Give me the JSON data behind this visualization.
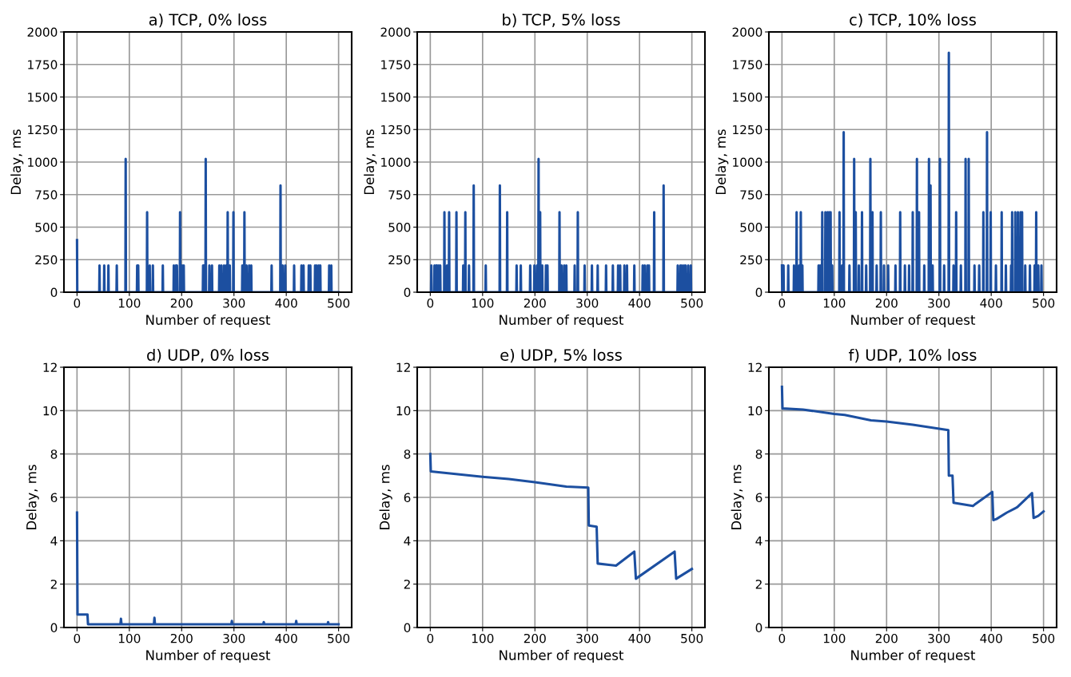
{
  "chart_data": [
    {
      "type": "line",
      "title": "a) TCP, 0% loss",
      "xlabel": "Number of request",
      "ylabel": "Delay, ms",
      "xlim": [
        -25,
        525
      ],
      "xticks": [
        0,
        100,
        200,
        300,
        400,
        500
      ],
      "ylim": [
        0,
        2000
      ],
      "yticks": [
        0,
        250,
        500,
        750,
        1000,
        1250,
        1500,
        1750,
        2000
      ],
      "grid": true,
      "series": [
        {
          "color": "#1c4fa0",
          "x": [
            0,
            0.5,
            42.5,
            43,
            43.5,
            51.5,
            52,
            52.5,
            59.5,
            60,
            60.5,
            75.5,
            76,
            76.5,
            92.5,
            93,
            93.5,
            114.5,
            115,
            115.5,
            116.5,
            117,
            117.5,
            133.5,
            134,
            134.5,
            138.5,
            139,
            139.5,
            144.5,
            145,
            145.5,
            163.5,
            164,
            164.5,
            184.5,
            185,
            185.5,
            188.5,
            189,
            189.5,
            190.5,
            191,
            191.5,
            196.5,
            197,
            197.5,
            200.5,
            201,
            201.5,
            203.5,
            204,
            204.5,
            240.5,
            241,
            241.5,
            242.5,
            243,
            243.5,
            245.5,
            246,
            246.5,
            252.5,
            253,
            253.5,
            257.5,
            258,
            258.5,
            271.5,
            272,
            272.5,
            275.5,
            276,
            276.5,
            280.5,
            281,
            281.5,
            284.5,
            285,
            285.5,
            287.5,
            288,
            288.5,
            291.5,
            292,
            292.5,
            298.5,
            299,
            299.5,
            315.5,
            316,
            316.5,
            319.5,
            320,
            320.5,
            323.5,
            324,
            324.5,
            328.5,
            329,
            329.5,
            332.5,
            333,
            333.5,
            371.5,
            372,
            372.5,
            388.5,
            389,
            389.5,
            392.5,
            393,
            393.5,
            397.5,
            398,
            398.5,
            414.5,
            415,
            415.5,
            428.5,
            429,
            429.5,
            432.5,
            433,
            433.5,
            442.5,
            443,
            443.5,
            445.5,
            446,
            446.5,
            454.5,
            455,
            455.5,
            457.5,
            458,
            458.5,
            461.5,
            462,
            462.5,
            464.5,
            465,
            465.5,
            481.5,
            482,
            482.5,
            485.5,
            486,
            486.5,
            500
          ],
          "values": [
            400,
            0,
            0,
            205,
            0,
            0,
            205,
            0,
            0,
            205,
            0,
            0,
            205,
            0,
            0,
            1025,
            0,
            0,
            205,
            0,
            0,
            205,
            0,
            0,
            615,
            0,
            0,
            205,
            0,
            0,
            205,
            0,
            0,
            205,
            0,
            0,
            205,
            0,
            0,
            205,
            0,
            0,
            205,
            0,
            0,
            615,
            0,
            0,
            205,
            0,
            0,
            205,
            0,
            0,
            205,
            0,
            0,
            205,
            0,
            0,
            1025,
            0,
            0,
            205,
            0,
            0,
            205,
            0,
            0,
            205,
            0,
            0,
            205,
            0,
            0,
            205,
            0,
            0,
            205,
            0,
            0,
            615,
            0,
            0,
            205,
            0,
            0,
            615,
            0,
            0,
            205,
            0,
            0,
            615,
            0,
            0,
            205,
            0,
            0,
            205,
            0,
            0,
            205,
            0,
            0,
            205,
            0,
            0,
            820,
            0,
            0,
            205,
            0,
            0,
            205,
            0,
            0,
            205,
            0,
            0,
            205,
            0,
            0,
            205,
            0,
            0,
            205,
            0,
            0,
            205,
            0,
            0,
            205,
            0,
            0,
            205,
            0,
            0,
            205,
            0,
            0,
            205,
            0,
            0,
            205,
            0,
            0,
            205,
            0,
            0
          ]
        }
      ]
    },
    {
      "type": "line",
      "title": "b) TCP, 5% loss",
      "xlabel": "Number of request",
      "ylabel": "Delay, ms",
      "xlim": [
        -25,
        525
      ],
      "xticks": [
        0,
        100,
        200,
        300,
        400,
        500
      ],
      "ylim": [
        0,
        2000
      ],
      "yticks": [
        0,
        250,
        500,
        750,
        1000,
        1250,
        1500,
        1750,
        2000
      ],
      "grid": true,
      "series": [
        {
          "color": "#1c4fa0",
          "x": [
            1.5,
            2,
            2.5,
            7.5,
            8,
            8.5,
            10.5,
            11,
            11.5,
            12.5,
            13,
            13.5,
            15.5,
            16,
            16.5,
            18.5,
            19,
            19.5,
            26.5,
            27,
            27.5,
            31.5,
            32,
            32.5,
            35.5,
            36,
            36.5,
            49.5,
            50,
            50.5,
            62.5,
            63,
            63.5,
            66.5,
            67,
            67.5,
            73.5,
            74,
            74.5,
            82.5,
            83,
            83.5,
            105.5,
            106,
            106.5,
            132.5,
            133,
            133.5,
            146.5,
            147,
            147.5,
            164.5,
            165,
            165.5,
            172.5,
            173,
            173.5,
            190.5,
            191,
            191.5,
            198.5,
            199,
            199.5,
            203.5,
            204,
            204.5,
            206.5,
            207,
            207.5,
            209.5,
            210,
            210.5,
            213.5,
            214,
            214.5,
            220.5,
            221,
            221.5,
            223.5,
            224,
            224.5,
            246.5,
            247,
            247.5,
            250.5,
            251,
            251.5,
            255.5,
            256,
            256.5,
            259.5,
            260,
            260.5,
            275.5,
            276,
            276.5,
            281.5,
            282,
            282.5,
            294.5,
            295,
            295.5,
            308.5,
            309,
            309.5,
            319.5,
            320,
            320.5,
            335.5,
            336,
            336.5,
            348.5,
            349,
            349.5,
            358.5,
            359,
            359.5,
            362.5,
            363,
            363.5,
            370.5,
            371,
            371.5,
            375.5,
            376,
            376.5,
            389.5,
            390,
            390.5,
            405.5,
            406,
            406.5,
            409.5,
            410,
            410.5,
            414.5,
            415,
            415.5,
            417.5,
            418,
            418.5,
            427.5,
            428,
            428.5,
            445.5,
            446,
            446.5,
            472.5,
            473,
            473.5,
            477.5,
            478,
            478.5,
            480.5,
            481,
            481.5,
            484.5,
            485,
            485.5,
            487.5,
            488,
            488.5,
            492.5,
            493,
            493.5,
            497.5,
            498,
            498.5
          ],
          "values": [
            0,
            205,
            0,
            0,
            205,
            0,
            0,
            205,
            0,
            0,
            205,
            0,
            0,
            205,
            0,
            0,
            205,
            0,
            0,
            615,
            0,
            0,
            205,
            0,
            0,
            615,
            0,
            0,
            615,
            0,
            0,
            205,
            0,
            0,
            615,
            0,
            0,
            205,
            0,
            0,
            820,
            0,
            0,
            205,
            0,
            0,
            820,
            0,
            0,
            615,
            0,
            0,
            205,
            0,
            0,
            205,
            0,
            0,
            205,
            0,
            0,
            205,
            0,
            0,
            205,
            0,
            0,
            1025,
            0,
            0,
            615,
            0,
            0,
            205,
            0,
            0,
            205,
            0,
            0,
            205,
            0,
            0,
            615,
            0,
            0,
            205,
            0,
            0,
            205,
            0,
            0,
            205,
            0,
            0,
            205,
            0,
            0,
            615,
            0,
            0,
            205,
            0,
            0,
            205,
            0,
            0,
            205,
            0,
            0,
            205,
            0,
            0,
            205,
            0,
            0,
            205,
            0,
            0,
            205,
            0,
            0,
            205,
            0,
            0,
            205,
            0,
            0,
            205,
            0,
            0,
            205,
            0,
            0,
            205,
            0,
            0,
            205,
            0,
            0,
            205,
            0,
            0,
            615,
            0,
            0,
            820,
            0,
            0,
            205,
            0,
            0,
            205,
            0,
            0,
            205,
            0,
            0,
            205,
            0,
            0,
            205,
            0,
            0,
            205,
            0,
            0,
            205,
            0
          ]
        }
      ]
    },
    {
      "type": "line",
      "title": "c) TCP, 10% loss",
      "xlabel": "Number of request",
      "ylabel": "Delay, ms",
      "xlim": [
        -25,
        525
      ],
      "xticks": [
        0,
        100,
        200,
        300,
        400,
        500
      ],
      "ylim": [
        0,
        2000
      ],
      "yticks": [
        0,
        250,
        500,
        750,
        1000,
        1250,
        1500,
        1750,
        2000
      ],
      "grid": true,
      "series": [
        {
          "color": "#1c4fa0",
          "x": [
            0,
            0.5,
            2.5,
            3,
            3.5,
            11.5,
            12,
            12.5,
            22.5,
            23,
            23.5,
            27.5,
            28,
            28.5,
            32.5,
            33,
            33.5,
            35.5,
            36,
            36.5,
            38.5,
            39,
            39.5,
            69.5,
            70,
            70.5,
            72.5,
            73,
            73.5,
            76.5,
            77,
            77.5,
            82.5,
            83,
            83.5,
            86.5,
            87,
            87.5,
            89.5,
            90,
            90.5,
            92.5,
            93,
            93.5,
            95.5,
            96,
            96.5,
            109.5,
            110,
            110.5,
            114.5,
            115,
            115.5,
            117.5,
            118,
            118.5,
            128.5,
            129,
            129.5,
            137.5,
            138,
            138.5,
            140.5,
            141,
            141.5,
            146.5,
            147,
            147.5,
            152.5,
            153,
            153.5,
            160.5,
            161,
            161.5,
            168.5,
            169,
            169.5,
            172.5,
            173,
            173.5,
            180.5,
            181,
            181.5,
            188.5,
            189,
            189.5,
            194.5,
            195,
            195.5,
            202.5,
            203,
            203.5,
            216.5,
            217,
            217.5,
            225.5,
            226,
            226.5,
            234.5,
            235,
            235.5,
            242.5,
            243,
            243.5,
            249.5,
            250,
            250.5,
            257.5,
            258,
            258.5,
            261.5,
            262,
            262.5,
            271.5,
            272,
            272.5,
            280.5,
            281,
            281.5,
            283.5,
            284,
            284.5,
            287.5,
            288,
            288.5,
            301.5,
            302,
            302.5,
            309.5,
            310,
            310.5,
            318.5,
            319,
            319.5,
            327.5,
            328,
            328.5,
            332.5,
            333,
            333.5,
            341.5,
            342,
            342.5,
            350.5,
            351,
            351.5,
            356.5,
            357,
            357.5,
            367.5,
            368,
            368.5,
            376.5,
            377,
            377.5,
            384.5,
            385,
            385.5,
            391.5,
            392,
            392.5,
            398.5,
            399,
            399.5,
            408.5,
            409,
            409.5,
            419.5,
            420,
            420.5,
            427.5,
            428,
            428.5,
            437.5,
            438,
            438.5,
            439.5,
            440,
            440.5,
            445.5,
            446,
            446.5,
            450.5,
            451,
            451.5,
            455.5,
            456,
            456.5,
            458.5,
            459,
            459.5,
            464.5,
            465,
            465.5,
            473.5,
            474,
            474.5,
            482.5,
            483,
            483.5,
            485.5,
            486,
            486.5,
            489.5,
            490,
            490.5,
            495.5,
            496,
            496.5
          ],
          "values": [
            205,
            0,
            0,
            205,
            0,
            0,
            205,
            0,
            0,
            205,
            0,
            0,
            615,
            0,
            0,
            205,
            0,
            0,
            615,
            0,
            0,
            205,
            0,
            0,
            205,
            0,
            0,
            205,
            0,
            0,
            615,
            0,
            0,
            615,
            0,
            0,
            615,
            0,
            0,
            615,
            0,
            0,
            615,
            0,
            0,
            205,
            0,
            0,
            615,
            0,
            0,
            205,
            0,
            0,
            1230,
            0,
            0,
            205,
            0,
            0,
            1025,
            0,
            0,
            615,
            0,
            0,
            205,
            0,
            0,
            615,
            0,
            0,
            205,
            0,
            0,
            1025,
            0,
            0,
            615,
            0,
            0,
            205,
            0,
            0,
            615,
            0,
            0,
            205,
            0,
            0,
            205,
            0,
            0,
            205,
            0,
            0,
            615,
            0,
            0,
            205,
            0,
            0,
            205,
            0,
            0,
            615,
            0,
            0,
            1025,
            0,
            0,
            615,
            0,
            0,
            205,
            0,
            0,
            1025,
            0,
            0,
            820,
            0,
            0,
            205,
            0,
            0,
            1025,
            0,
            0,
            205,
            0,
            0,
            1840,
            0,
            0,
            205,
            0,
            0,
            615,
            0,
            0,
            205,
            0,
            0,
            1025,
            0,
            0,
            1025,
            0,
            0,
            205,
            0,
            0,
            205,
            0,
            0,
            615,
            0,
            0,
            1230,
            0,
            0,
            615,
            0,
            0,
            205,
            0,
            0,
            615,
            0,
            0,
            205,
            0,
            0,
            205,
            0,
            0,
            615,
            0,
            0,
            615,
            0,
            0,
            615,
            0,
            0,
            615,
            0,
            0,
            615,
            0,
            0,
            205,
            0,
            0,
            205,
            0,
            0,
            205,
            0,
            0,
            615,
            0,
            0,
            205,
            0,
            0,
            205,
            0
          ]
        }
      ]
    },
    {
      "type": "line",
      "title": "d) UDP, 0% loss",
      "xlabel": "Number of request",
      "ylabel": "Delay, ms",
      "xlim": [
        -25,
        525
      ],
      "xticks": [
        0,
        100,
        200,
        300,
        400,
        500
      ],
      "ylim": [
        0,
        12
      ],
      "yticks": [
        0,
        2,
        4,
        6,
        8,
        10,
        12
      ],
      "grid": true,
      "series": [
        {
          "color": "#1c4fa0",
          "x": [
            0,
            1,
            10,
            20,
            21,
            83,
            84,
            85,
            147,
            148,
            149,
            295,
            296,
            297,
            356,
            357,
            358,
            418,
            419,
            420,
            479,
            480,
            481,
            500
          ],
          "values": [
            5.3,
            0.6,
            0.6,
            0.6,
            0.15,
            0.15,
            0.4,
            0.15,
            0.15,
            0.45,
            0.15,
            0.15,
            0.3,
            0.15,
            0.15,
            0.25,
            0.15,
            0.15,
            0.3,
            0.15,
            0.15,
            0.25,
            0.15,
            0.15
          ]
        }
      ]
    },
    {
      "type": "line",
      "title": "e) UDP, 5% loss",
      "xlabel": "Number of request",
      "ylabel": "Delay, ms",
      "xlim": [
        -25,
        525
      ],
      "xticks": [
        0,
        100,
        200,
        300,
        400,
        500
      ],
      "ylim": [
        0,
        12
      ],
      "yticks": [
        0,
        2,
        4,
        6,
        8,
        10,
        12
      ],
      "grid": true,
      "series": [
        {
          "color": "#1c4fa0",
          "x": [
            0,
            1,
            100,
            150,
            200,
            260,
            302,
            303,
            318,
            320,
            355,
            390,
            393,
            467,
            470,
            500
          ],
          "values": [
            8.0,
            7.2,
            6.95,
            6.85,
            6.7,
            6.5,
            6.45,
            4.7,
            4.65,
            2.95,
            2.85,
            3.5,
            2.25,
            3.5,
            2.25,
            2.7
          ]
        }
      ]
    },
    {
      "type": "line",
      "title": "f) UDP, 10% loss",
      "xlabel": "Number of request",
      "ylabel": "Delay, ms",
      "xlim": [
        -25,
        525
      ],
      "xticks": [
        0,
        100,
        200,
        300,
        400,
        500
      ],
      "ylim": [
        0,
        12
      ],
      "yticks": [
        0,
        2,
        4,
        6,
        8,
        10,
        12
      ],
      "grid": true,
      "series": [
        {
          "color": "#1c4fa0",
          "x": [
            0,
            1,
            40,
            100,
            120,
            170,
            200,
            250,
            318,
            319,
            326,
            328,
            365,
            370,
            402,
            404,
            410,
            430,
            450,
            478,
            481,
            490,
            500
          ],
          "values": [
            11.1,
            10.1,
            10.05,
            9.85,
            9.8,
            9.55,
            9.5,
            9.35,
            9.1,
            7.0,
            7.0,
            5.75,
            5.6,
            5.7,
            6.25,
            4.95,
            5.0,
            5.3,
            5.55,
            6.2,
            5.05,
            5.15,
            5.35
          ]
        }
      ]
    }
  ]
}
